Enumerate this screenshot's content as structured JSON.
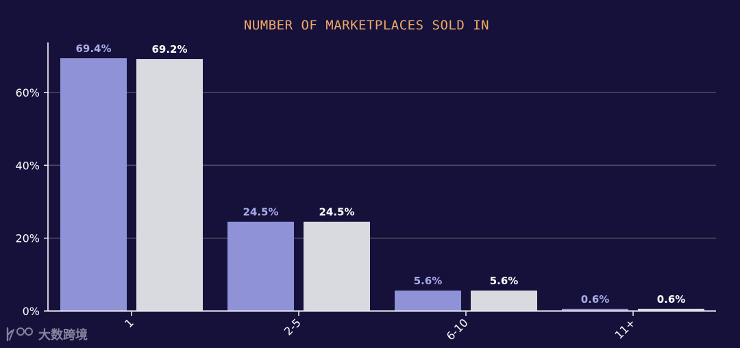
{
  "chart_data": {
    "type": "bar",
    "title": "NUMBER OF MARKETPLACES SOLD IN",
    "xlabel": "",
    "ylabel": "",
    "categories": [
      "1",
      "2-5",
      "6-10",
      "11+"
    ],
    "series": [
      {
        "values": [
          69.4,
          24.5,
          5.6,
          0.6
        ],
        "labels": [
          "69.4%",
          "24.5%",
          "5.6%",
          "0.6%"
        ],
        "color": "#8f92d6",
        "label_color": "#a8abea"
      },
      {
        "values": [
          69.2,
          24.5,
          5.6,
          0.6
        ],
        "labels": [
          "69.2%",
          "24.5%",
          "5.6%",
          "0.6%"
        ],
        "color": "#d9d9e0",
        "label_color": "#ffffff"
      }
    ],
    "yticks": [
      0,
      20,
      40,
      60
    ],
    "ytick_labels": [
      "0%",
      "20%",
      "40%",
      "60%"
    ],
    "ylim": [
      0,
      70
    ],
    "grid": true,
    "legend": "none",
    "colors": {
      "background": "#15113a",
      "title": "#f0a868",
      "axis": "#e6e6ee",
      "grid": "#4d4a62",
      "tick_text": "#ffffff"
    }
  },
  "watermark": {
    "logo_text": "大数跨境",
    "icon": "k100-logo-icon"
  }
}
